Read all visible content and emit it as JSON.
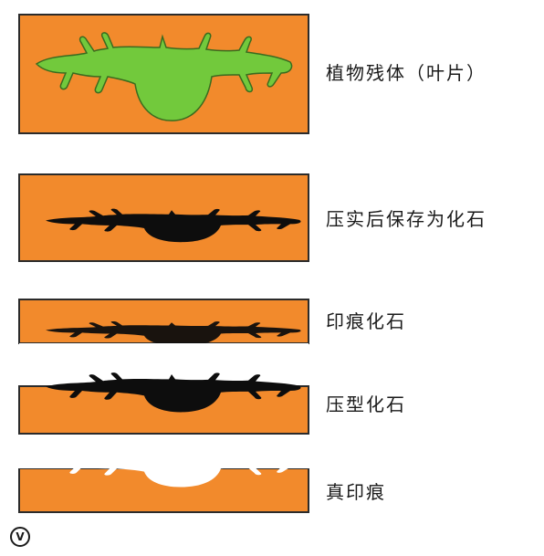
{
  "colors": {
    "rock": "#f28a2c",
    "plant": "#72c93c",
    "fossil": "#0d0d0d",
    "border": "#2b2b2b",
    "background": "#ffffff"
  },
  "stages": [
    {
      "label": "植物残体（叶片）"
    },
    {
      "label": "压实后保存为化石"
    },
    {
      "label": "印痕化石"
    },
    {
      "label": "压型化石"
    },
    {
      "label": "真印痕"
    }
  ],
  "badge": "V"
}
